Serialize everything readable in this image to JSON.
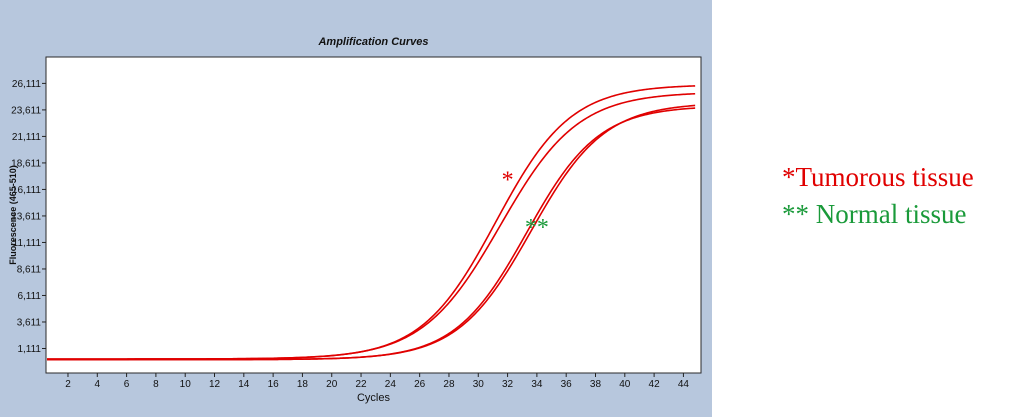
{
  "chart_data": {
    "type": "line",
    "title": "Amplification Curves",
    "xlabel": "Cycles",
    "ylabel": "Fluorescence (465-510)",
    "xlim": [
      0.5,
      45.2
    ],
    "ylim": [
      -1200,
      28600
    ],
    "x_ticks": [
      2,
      4,
      6,
      8,
      10,
      12,
      14,
      16,
      18,
      20,
      22,
      24,
      26,
      28,
      30,
      32,
      34,
      36,
      38,
      40,
      42,
      44
    ],
    "x_tick_labels": [
      "2",
      "4",
      "6",
      "8",
      "10",
      "12",
      "14",
      "16",
      "18",
      "20",
      "22",
      "24",
      "26",
      "28",
      "30",
      "32",
      "34",
      "36",
      "38",
      "40",
      "42",
      "44"
    ],
    "y_ticks": [
      1111,
      3611,
      6111,
      8611,
      11111,
      13611,
      16111,
      18611,
      21111,
      23611,
      26111
    ],
    "y_tick_labels": [
      "1,111",
      "3,611",
      "6,111",
      "8,611",
      "11,111",
      "13,611",
      "16,111",
      "18,611",
      "21,111",
      "23,611",
      "26,111"
    ],
    "grid": false,
    "series": [
      {
        "group": "tumorous",
        "color": "#e00000",
        "baseline": 120,
        "plateau": 26000,
        "midpoint": 31.2,
        "slope": 2.55
      },
      {
        "group": "tumorous",
        "color": "#e00000",
        "baseline": 120,
        "plateau": 25300,
        "midpoint": 31.5,
        "slope": 2.65
      },
      {
        "group": "normal",
        "color": "#e00000",
        "baseline": 60,
        "plateau": 24000,
        "midpoint": 33.3,
        "slope": 2.45
      },
      {
        "group": "normal",
        "color": "#e00000",
        "baseline": 60,
        "plateau": 24300,
        "midpoint": 33.6,
        "slope": 2.5
      }
    ],
    "annotations": [
      {
        "text": "*",
        "x": 32.0,
        "y": 16300,
        "color": "#e00000"
      },
      {
        "text": "**",
        "x": 34.0,
        "y": 11800,
        "color": "#1a9a3a"
      }
    ]
  },
  "legend": {
    "tumor": {
      "text": "*Tumorous tissue",
      "color": "#e00000"
    },
    "normal": {
      "text": "** Normal tissue",
      "color": "#1a9a3a"
    }
  }
}
